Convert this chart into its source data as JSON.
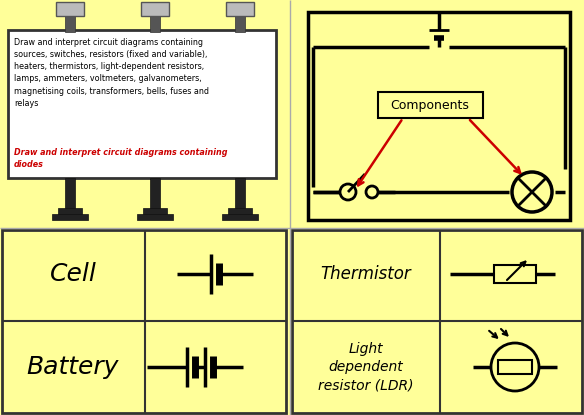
{
  "bg_color": "#FFFF99",
  "billboard_text_black": "Draw and interpret circuit diagrams containing\nsources, switches, resistors (fixed and variable),\nheaters, thermistors, light-dependent resistors,\nlamps, ammeters, voltmeters, galvanometers,\nmagnetising coils, transformers, bells, fuses and\nrelays",
  "billboard_text_red": "Draw and interpret circuit diagrams containing\ndiodes",
  "components_label": "Components",
  "cell_label": "Cell",
  "battery_label": "Battery",
  "thermistor_label": "Thermistor",
  "ldr_label": "Light\ndependent\nresistor (LDR)",
  "line_color": "#000000",
  "red_color": "#CC0000",
  "gray_color": "#888888",
  "dark_color": "#333333",
  "white": "#FFFFFF",
  "light_gray": "#CCCCCC"
}
